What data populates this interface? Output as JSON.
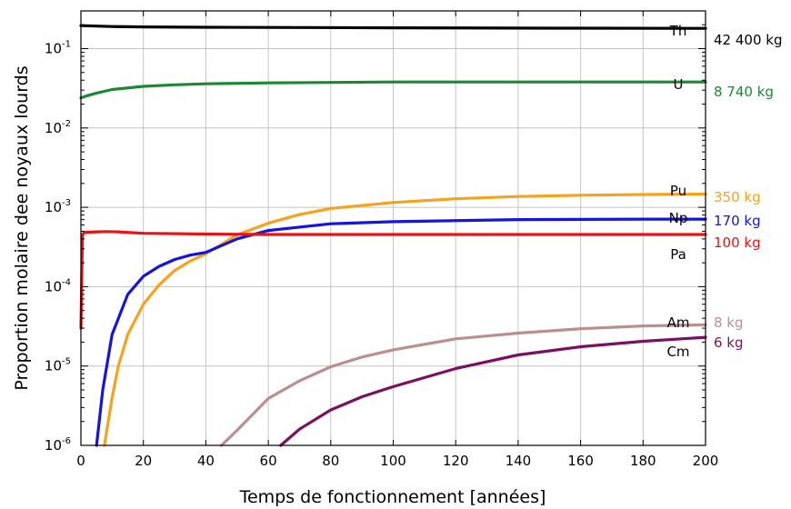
{
  "chart_data": {
    "type": "line",
    "xlabel": "Temps de fonctionnement [années]",
    "ylabel": "Proportion molaire dee noyaux lourds",
    "xlim": [
      0,
      200
    ],
    "ylim": [
      1e-06,
      0.35
    ],
    "yscale": "log",
    "grid": true,
    "x_ticks": [
      "0",
      "20",
      "40",
      "60",
      "80",
      "100",
      "120",
      "140",
      "160",
      "180",
      "200"
    ],
    "y_ticks": [
      {
        "base": "10",
        "exp": "-6",
        "value": 1e-06
      },
      {
        "base": "10",
        "exp": "-5",
        "value": 1e-05
      },
      {
        "base": "10",
        "exp": "-4",
        "value": 0.0001
      },
      {
        "base": "10",
        "exp": "-3",
        "value": 0.001
      },
      {
        "base": "10",
        "exp": "-2",
        "value": 0.01
      },
      {
        "base": "10",
        "exp": "-1",
        "value": 0.1
      }
    ],
    "series": [
      {
        "name": "Th",
        "mass": "42 400 kg",
        "color": "#000000",
        "x": [
          0,
          10,
          20,
          40,
          60,
          100,
          150,
          200
        ],
        "y": [
          0.195,
          0.19,
          0.188,
          0.186,
          0.185,
          0.183,
          0.181,
          0.18
        ]
      },
      {
        "name": "U",
        "mass": "8 740 kg",
        "color": "#1a8a32",
        "x": [
          0,
          2,
          5,
          10,
          20,
          30,
          40,
          60,
          80,
          100,
          150,
          200
        ],
        "y": [
          0.024,
          0.0255,
          0.0275,
          0.0305,
          0.0335,
          0.035,
          0.036,
          0.037,
          0.0375,
          0.038,
          0.038,
          0.038
        ]
      },
      {
        "name": "Pu",
        "mass": "350 kg",
        "color": "#f6a21a",
        "x": [
          7.5,
          10,
          12,
          15,
          20,
          25,
          30,
          35,
          40,
          50,
          60,
          70,
          80,
          100,
          120,
          140,
          160,
          180,
          200
        ],
        "y": [
          1e-06,
          4e-06,
          1e-05,
          2.5e-05,
          6e-05,
          0.000105,
          0.00016,
          0.00021,
          0.00026,
          0.00045,
          0.00063,
          0.00081,
          0.00097,
          0.00115,
          0.00128,
          0.00137,
          0.00142,
          0.00145,
          0.00147
        ]
      },
      {
        "name": "Np",
        "mass": "170 kg",
        "color": "#1414e0",
        "x": [
          5,
          7,
          10,
          15,
          20,
          25,
          30,
          35,
          40,
          50,
          60,
          80,
          100,
          140,
          180,
          200
        ],
        "y": [
          1e-06,
          5e-06,
          2.5e-05,
          8e-05,
          0.000135,
          0.00018,
          0.00022,
          0.00025,
          0.00027,
          0.0004,
          0.00051,
          0.00062,
          0.00066,
          0.0007,
          0.00071,
          0.00071
        ]
      },
      {
        "name": "Pa",
        "mass": "100 kg",
        "color": "#e81414",
        "x": [
          0,
          0.5,
          1,
          2,
          5,
          8,
          12,
          20,
          40,
          60,
          80,
          100,
          150,
          200
        ],
        "y": [
          3e-05,
          0.00045,
          0.00048,
          0.000485,
          0.00049,
          0.000495,
          0.00049,
          0.00047,
          0.00046,
          0.000455,
          0.000455,
          0.000455,
          0.000455,
          0.000455
        ]
      },
      {
        "name": "Am",
        "mass": "8 kg",
        "color": "#bc8f8f",
        "x": [
          45,
          50,
          60,
          70,
          80,
          90,
          100,
          120,
          140,
          160,
          180,
          200
        ],
        "y": [
          1e-06,
          1.55e-06,
          3.9e-06,
          6.5e-06,
          9.8e-06,
          1.3e-05,
          1.6e-05,
          2.2e-05,
          2.6e-05,
          2.95e-05,
          3.2e-05,
          3.3e-05
        ]
      },
      {
        "name": "Cm",
        "mass": "6 kg",
        "color": "#7a1060",
        "x": [
          64,
          70,
          80,
          90,
          100,
          120,
          140,
          160,
          180,
          200
        ],
        "y": [
          1e-06,
          1.6e-06,
          2.8e-06,
          4.1e-06,
          5.5e-06,
          9.3e-06,
          1.38e-05,
          1.75e-05,
          2.05e-05,
          2.3e-05
        ]
      }
    ]
  }
}
